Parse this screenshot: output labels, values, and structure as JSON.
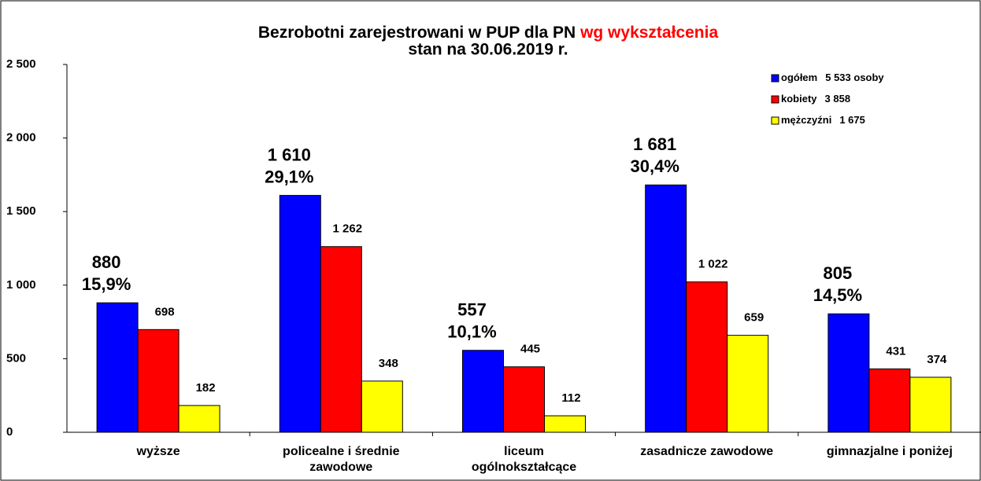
{
  "chart_data": {
    "type": "bar",
    "title": "Bezrobotni zarejestrowani w PUP dla PN",
    "title_highlight": "wg wykształcenia",
    "title_highlight_color": "#ff0000",
    "subtitle": "stan na 30.06.2019 r.",
    "categories": [
      [
        "wyższe"
      ],
      [
        "policealne i średnie",
        "zawodowe"
      ],
      [
        "liceum",
        "ogólnokształcące"
      ],
      [
        "zasadnicze zawodowe"
      ],
      [
        "gimnazjalne i poniżej"
      ]
    ],
    "series": [
      {
        "name": "ogółem",
        "color": "#0000ff",
        "total": 5533,
        "total_label": "5 533 osoby",
        "values": [
          880,
          1610,
          557,
          1681,
          805
        ],
        "value_labels": [
          "880",
          "1 610",
          "557",
          "1 681",
          "805"
        ],
        "shares": [
          15.9,
          29.1,
          10.1,
          30.4,
          14.5
        ],
        "share_labels": [
          "15,9%",
          "29,1%",
          "10,1%",
          "30,4%",
          "14,5%"
        ]
      },
      {
        "name": "kobiety",
        "color": "#ff0000",
        "total": 3858,
        "total_label": "3 858",
        "values": [
          698,
          1262,
          445,
          1022,
          431
        ],
        "value_labels": [
          "698",
          "1 262",
          "445",
          "1 022",
          "431"
        ]
      },
      {
        "name": "mężczyźni",
        "color": "#ffff00",
        "total": 1675,
        "total_label": "1 675",
        "values": [
          182,
          348,
          112,
          659,
          374
        ]
      }
    ],
    "ylim": [
      0,
      2500
    ],
    "yticks": [
      0,
      500,
      {
        "value": 1000,
        "label": "1 000"
      },
      {
        "value": 1500,
        "label": "1 500"
      },
      {
        "value": 2000,
        "label": "2 000"
      },
      {
        "value": 2500,
        "label": "2 500"
      }
    ],
    "legend": "top-right"
  }
}
